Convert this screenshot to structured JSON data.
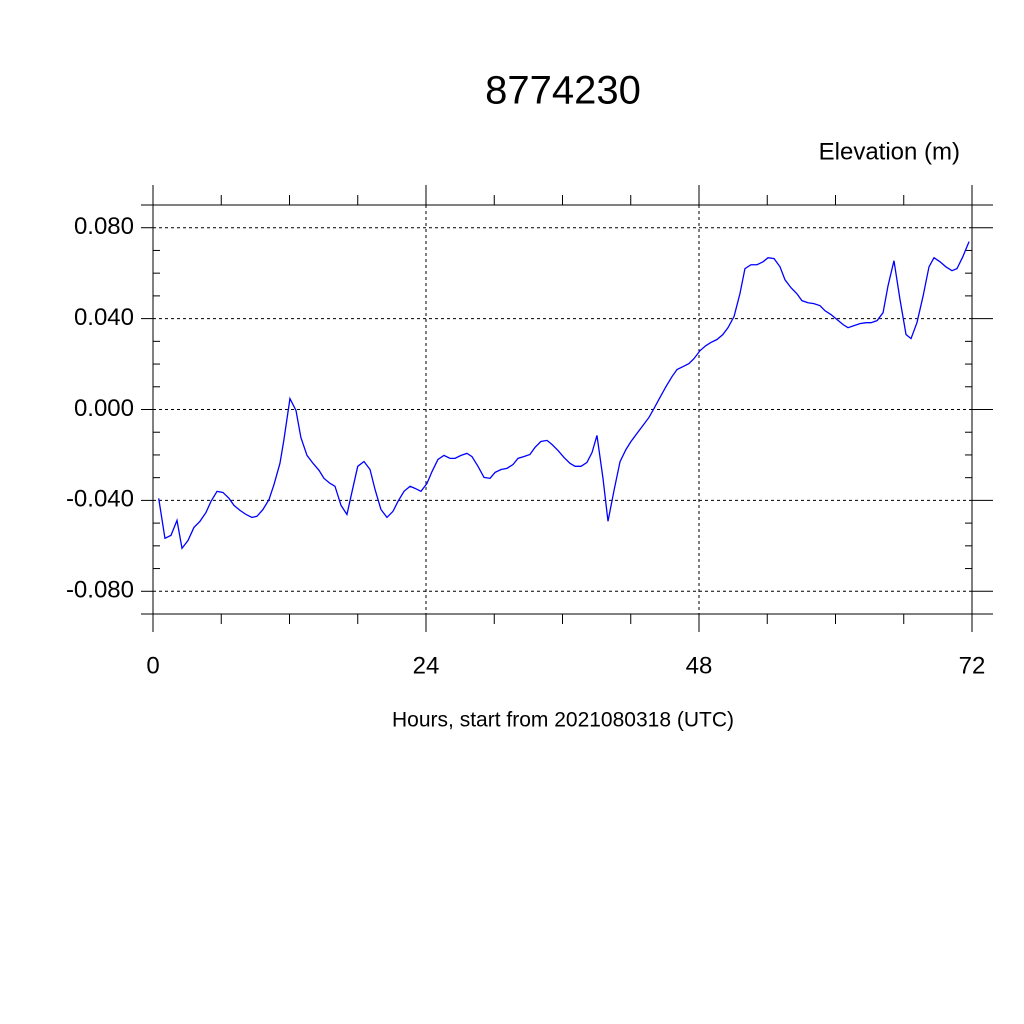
{
  "chart_data": {
    "type": "line",
    "title": "8774230",
    "y_label": "Elevation (m)",
    "x_label": "Hours, start from 2021080318 (UTC)",
    "xlim": [
      0,
      72
    ],
    "xticks": [
      0,
      24,
      48,
      72
    ],
    "ylim": [
      -0.09,
      0.09
    ],
    "yticks": [
      {
        "value": -0.08,
        "label": "-0.080"
      },
      {
        "value": -0.04,
        "label": "-0.040"
      },
      {
        "value": 0,
        "label": "0.000"
      },
      {
        "value": 0.04,
        "label": "0.040"
      },
      {
        "value": 0.08,
        "label": "0.080"
      }
    ],
    "grid": true,
    "x": [
      0.5,
      1.05,
      1.58,
      2.11,
      2.55,
      3.08,
      3.6,
      4.13,
      4.66,
      5.1,
      5.63,
      6.15,
      6.68,
      7.12,
      7.65,
      8.18,
      8.7,
      9.14,
      9.67,
      10.2,
      10.64,
      11.16,
      11.5,
      12.04,
      12.57,
      13.0,
      13.54,
      14.07,
      14.6,
      15.03,
      15.56,
      16.0,
      16.53,
      17.05,
      17.58,
      18.0,
      18.55,
      19.08,
      19.52,
      20.04,
      20.57,
      21.1,
      21.54,
      22.07,
      22.6,
      23.03,
      23.56,
      24.09,
      24.53,
      25.05,
      25.58,
      26.11,
      26.55,
      27.08,
      27.6,
      28.04,
      28.57,
      29.1,
      29.63,
      30.07,
      30.6,
      31.12,
      31.65,
      32.09,
      32.62,
      33.14,
      33.58,
      34.1,
      34.64,
      35.08,
      35.6,
      36.13,
      36.66,
      37.1,
      37.63,
      38.15,
      38.6,
      39.03,
      39.56,
      40.0,
      40.53,
      41.06,
      41.58,
      42.02,
      42.55,
      43.08,
      43.6,
      44.04,
      44.57,
      45.1,
      45.63,
      46.07,
      46.6,
      47.12,
      47.56,
      48.09,
      48.6,
      49.05,
      49.58,
      50.1,
      50.55,
      51.08,
      51.6,
      52.04,
      52.57,
      53.1,
      53.63,
      54.07,
      54.6,
      55.12,
      55.56,
      56.09,
      56.6,
      57.05,
      57.58,
      58.1,
      58.64,
      59.07,
      59.6,
      60.13,
      60.66,
      61.1,
      61.63,
      62.15,
      62.68,
      63.12,
      63.65,
      64.18,
      64.62,
      65.14,
      65.67,
      66.2,
      66.64,
      67.16,
      67.69,
      68.22,
      68.66,
      69.19,
      69.7,
      70.24,
      70.68,
      71.2,
      71.74
    ],
    "series": [
      {
        "color": "#0000ff",
        "values": [
          -0.0391,
          -0.0567,
          -0.0554,
          -0.0488,
          -0.0611,
          -0.0576,
          -0.0519,
          -0.0492,
          -0.0453,
          -0.0404,
          -0.036,
          -0.0365,
          -0.0391,
          -0.0422,
          -0.0444,
          -0.0462,
          -0.0475,
          -0.047,
          -0.044,
          -0.0396,
          -0.033,
          -0.0237,
          -0.0136,
          0.0048,
          -0.0004,
          -0.0123,
          -0.0202,
          -0.0237,
          -0.0268,
          -0.0303,
          -0.0325,
          -0.0338,
          -0.0422,
          -0.0462,
          -0.0343,
          -0.025,
          -0.0229,
          -0.0264,
          -0.0352,
          -0.044,
          -0.0475,
          -0.0448,
          -0.0404,
          -0.036,
          -0.0338,
          -0.0347,
          -0.036,
          -0.0325,
          -0.0273,
          -0.022,
          -0.0202,
          -0.0215,
          -0.0215,
          -0.0202,
          -0.0193,
          -0.0207,
          -0.025,
          -0.0299,
          -0.0303,
          -0.0277,
          -0.0264,
          -0.0259,
          -0.0242,
          -0.0215,
          -0.0207,
          -0.0198,
          -0.0167,
          -0.0141,
          -0.0136,
          -0.0154,
          -0.018,
          -0.0211,
          -0.0237,
          -0.025,
          -0.025,
          -0.0233,
          -0.0189,
          -0.0114,
          -0.0303,
          -0.0492,
          -0.0356,
          -0.0229,
          -0.0176,
          -0.0141,
          -0.0105,
          -0.007,
          -0.0035,
          0.0004,
          0.0053,
          0.0101,
          0.0145,
          0.0176,
          0.0189,
          0.0202,
          0.0224,
          0.0259,
          0.0281,
          0.0295,
          0.0308,
          0.033,
          0.036,
          0.0409,
          0.051,
          0.062,
          0.0637,
          0.0637,
          0.065,
          0.0668,
          0.0664,
          0.0628,
          0.0571,
          0.0536,
          0.051,
          0.0479,
          0.047,
          0.0466,
          0.0457,
          0.0435,
          0.0418,
          0.0396,
          0.0374,
          0.036,
          0.0369,
          0.0378,
          0.0382,
          0.0382,
          0.0391,
          0.0426,
          0.0545,
          0.0655,
          0.0484,
          0.033,
          0.0312,
          0.0382,
          0.0497,
          0.0628,
          0.0668,
          0.065,
          0.0628,
          0.0611,
          0.062,
          0.0673,
          0.0739
        ]
      }
    ]
  }
}
